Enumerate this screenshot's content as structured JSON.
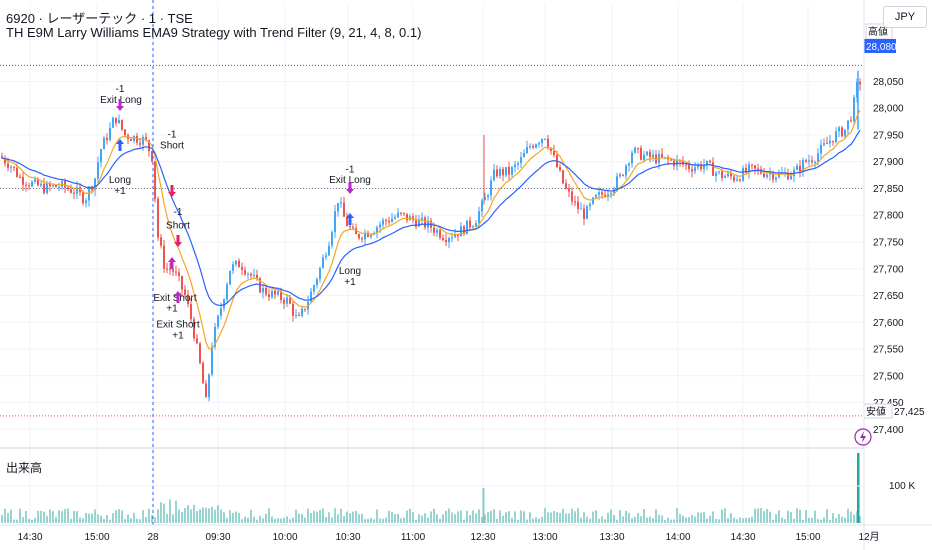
{
  "header": {
    "symbol_line": "6920 · レーザーテック · 1 · TSE",
    "strategy_line": "TH E9M Larry Williams EMA9 Strategy with Trend Filter (9, 21, 4, 8, 0.1)"
  },
  "currency_button": "JPY",
  "volume_pane": {
    "title": "出来高",
    "axis_label": "100 K"
  },
  "price_axis": {
    "ticks": [
      "28,050",
      "28,000",
      "27,950",
      "27,900",
      "27,850",
      "27,800",
      "27,750",
      "27,700",
      "27,650",
      "27,600",
      "27,550",
      "27,500",
      "27,450",
      "27,400"
    ],
    "high_label": "高値",
    "high_value": "28,080",
    "low_label": "安値",
    "low_value": "27,425"
  },
  "time_axis": {
    "ticks": [
      "14:30",
      "15:00",
      "28",
      "09:30",
      "10:00",
      "10:30",
      "11:00",
      "12:30",
      "13:00",
      "13:30",
      "14:00",
      "14:30",
      "15:00",
      "12月"
    ]
  },
  "alert_icon": "lightning-icon",
  "chart_data": {
    "type": "candlestick",
    "title": "TH E9M Larry Williams EMA9 Strategy with Trend Filter (9, 21, 4, 8, 0.1)",
    "y_range": [
      27380,
      28120
    ],
    "price_path": [
      {
        "t": 0,
        "p": 27910
      },
      {
        "t": 10,
        "p": 27895
      },
      {
        "t": 20,
        "p": 27870
      },
      {
        "t": 30,
        "p": 27860
      },
      {
        "t": 45,
        "p": 27850
      },
      {
        "t": 60,
        "p": 27855
      },
      {
        "t": 75,
        "p": 27845
      },
      {
        "t": 85,
        "p": 27830
      },
      {
        "t": 95,
        "p": 27870
      },
      {
        "t": 100,
        "p": 27920
      },
      {
        "t": 110,
        "p": 27960
      },
      {
        "t": 115,
        "p": 27985
      },
      {
        "t": 125,
        "p": 27950
      },
      {
        "t": 135,
        "p": 27945
      },
      {
        "t": 145,
        "p": 27940
      },
      {
        "t": 152,
        "p": 27910
      },
      {
        "t": 158,
        "p": 27760
      },
      {
        "t": 165,
        "p": 27700
      },
      {
        "t": 172,
        "p": 27700
      },
      {
        "t": 178,
        "p": 27680
      },
      {
        "t": 185,
        "p": 27650
      },
      {
        "t": 192,
        "p": 27600
      },
      {
        "t": 200,
        "p": 27520
      },
      {
        "t": 206,
        "p": 27450
      },
      {
        "t": 212,
        "p": 27560
      },
      {
        "t": 220,
        "p": 27620
      },
      {
        "t": 230,
        "p": 27700
      },
      {
        "t": 240,
        "p": 27710
      },
      {
        "t": 250,
        "p": 27690
      },
      {
        "t": 262,
        "p": 27660
      },
      {
        "t": 275,
        "p": 27650
      },
      {
        "t": 288,
        "p": 27640
      },
      {
        "t": 298,
        "p": 27600
      },
      {
        "t": 310,
        "p": 27650
      },
      {
        "t": 320,
        "p": 27700
      },
      {
        "t": 330,
        "p": 27760
      },
      {
        "t": 338,
        "p": 27830
      },
      {
        "t": 345,
        "p": 27790
      },
      {
        "t": 355,
        "p": 27760
      },
      {
        "t": 370,
        "p": 27770
      },
      {
        "t": 385,
        "p": 27790
      },
      {
        "t": 400,
        "p": 27800
      },
      {
        "t": 415,
        "p": 27790
      },
      {
        "t": 430,
        "p": 27780
      },
      {
        "t": 445,
        "p": 27760
      },
      {
        "t": 460,
        "p": 27770
      },
      {
        "t": 475,
        "p": 27790
      },
      {
        "t": 485,
        "p": 27830
      },
      {
        "t": 495,
        "p": 27880
      },
      {
        "t": 510,
        "p": 27880
      },
      {
        "t": 520,
        "p": 27900
      },
      {
        "t": 530,
        "p": 27930
      },
      {
        "t": 545,
        "p": 27950
      },
      {
        "t": 555,
        "p": 27900
      },
      {
        "t": 565,
        "p": 27850
      },
      {
        "t": 575,
        "p": 27820
      },
      {
        "t": 585,
        "p": 27800
      },
      {
        "t": 595,
        "p": 27830
      },
      {
        "t": 610,
        "p": 27850
      },
      {
        "t": 620,
        "p": 27870
      },
      {
        "t": 632,
        "p": 27920
      },
      {
        "t": 645,
        "p": 27910
      },
      {
        "t": 660,
        "p": 27905
      },
      {
        "t": 675,
        "p": 27900
      },
      {
        "t": 690,
        "p": 27890
      },
      {
        "t": 705,
        "p": 27895
      },
      {
        "t": 720,
        "p": 27875
      },
      {
        "t": 735,
        "p": 27870
      },
      {
        "t": 750,
        "p": 27885
      },
      {
        "t": 765,
        "p": 27880
      },
      {
        "t": 780,
        "p": 27875
      },
      {
        "t": 795,
        "p": 27880
      },
      {
        "t": 805,
        "p": 27900
      },
      {
        "t": 815,
        "p": 27910
      },
      {
        "t": 825,
        "p": 27930
      },
      {
        "t": 835,
        "p": 27950
      },
      {
        "t": 845,
        "p": 27960
      },
      {
        "t": 852,
        "p": 27990
      },
      {
        "t": 858,
        "p": 28050
      }
    ],
    "reference_lines": {
      "high": 28080,
      "low": 27425,
      "dotted_level": 27850
    },
    "session_break": "28",
    "annotations": [
      {
        "text": "-1",
        "t": 120,
        "p": 28030,
        "kind": "label"
      },
      {
        "text": "Exit Long",
        "t": 121,
        "p": 28010,
        "kind": "label"
      },
      {
        "text": "Long",
        "t": 120,
        "p": 27860,
        "kind": "label"
      },
      {
        "text": "+1",
        "t": 120,
        "p": 27840,
        "kind": "label"
      },
      {
        "text": "-1",
        "t": 172,
        "p": 27945,
        "kind": "label"
      },
      {
        "text": "Short",
        "t": 172,
        "p": 27925,
        "kind": "label"
      },
      {
        "text": "-1",
        "t": 178,
        "p": 27800,
        "kind": "label"
      },
      {
        "text": "Short",
        "t": 178,
        "p": 27775,
        "kind": "label"
      },
      {
        "text": "Exit Short",
        "t": 175,
        "p": 27640,
        "kind": "label"
      },
      {
        "text": "+1",
        "t": 172,
        "p": 27620,
        "kind": "label"
      },
      {
        "text": "Exit Short",
        "t": 178,
        "p": 27590,
        "kind": "label"
      },
      {
        "text": "+1",
        "t": 178,
        "p": 27570,
        "kind": "label"
      },
      {
        "text": "-1",
        "t": 350,
        "p": 27880,
        "kind": "label"
      },
      {
        "text": "Exit Long",
        "t": 350,
        "p": 27860,
        "kind": "label"
      },
      {
        "text": "Long",
        "t": 350,
        "p": 27690,
        "kind": "label"
      },
      {
        "text": "+1",
        "t": 350,
        "p": 27670,
        "kind": "label"
      }
    ],
    "colors": {
      "up": "#42a5f5",
      "down": "#ef5350",
      "ema_fast": "#f5a623",
      "ema_slow": "#2962ff",
      "long_signal": "#2962ff",
      "short_signal": "#e91e63",
      "exit_signal": "#ba29c9",
      "high_tag": "#2962ff",
      "volume": "#26a69a"
    }
  }
}
